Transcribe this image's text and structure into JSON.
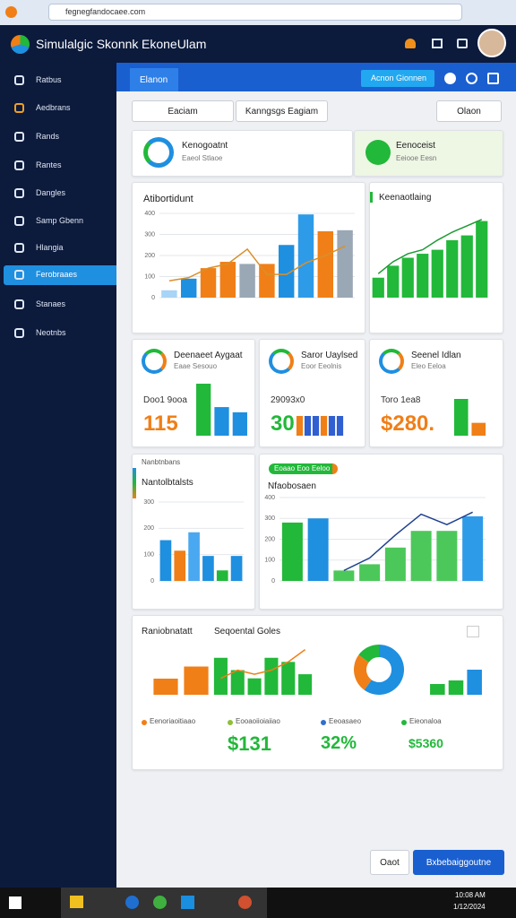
{
  "browser": {
    "url": "fegnegfandocaee.com"
  },
  "header": {
    "title": "Simulalgic Skonnk",
    "subtitle": "EkoneUlam"
  },
  "sidebar": {
    "items": [
      "Ratbus",
      "Aedbrans",
      "Rands",
      "Rantes",
      "Dangles",
      "Samp Gbenn",
      "Hlangia",
      "Ferobraaes",
      "Stanaes",
      "Neotnbs"
    ],
    "active": 7
  },
  "tab": "Elanon",
  "action": "Acnon Gionnen",
  "toolbar": [
    "Eaciam",
    "Kanngsgs Eagiam",
    "Olaon"
  ],
  "summary": [
    {
      "title": "Kenogoatnt",
      "subtitle": "Eaeol Stlaoe"
    },
    {
      "title": "Eenoceist",
      "subtitle": "Eeiooe Eesn"
    }
  ],
  "charts": [
    {
      "type": "bar",
      "title": "Atibortidunt",
      "ylim": [
        0,
        400
      ],
      "yticks": [
        0,
        100,
        200,
        300,
        400
      ],
      "values": [
        35,
        90,
        140,
        170,
        160,
        160,
        250,
        395,
        315,
        320
      ],
      "colors": [
        "#a8d4f5",
        "#1f8fe0",
        "#f07f17",
        "#f07f17",
        "#9aa7b5",
        "#f07f17",
        "#1f8fe0",
        "#2e9be8",
        "#f07f17",
        "#9aa7b5"
      ],
      "line": [
        80,
        95,
        140,
        160,
        230,
        110,
        110,
        165,
        200,
        245
      ],
      "line_color": "#d9902a"
    },
    {
      "type": "bar",
      "title": "Keenaotlaing",
      "ylim": [
        0,
        100
      ],
      "values": [
        25,
        40,
        50,
        55,
        60,
        72,
        78,
        96
      ],
      "colors": [
        "#22b83a",
        "#22b83a",
        "#22b83a",
        "#22b83a",
        "#22b83a",
        "#22b83a",
        "#22b83a",
        "#22b83a"
      ],
      "line": [
        30,
        45,
        55,
        60,
        72,
        82,
        90,
        98
      ],
      "line_color": "#1c9a33"
    },
    {
      "type": "bar",
      "ylim": [
        0,
        100
      ],
      "values": [
        100,
        55,
        45
      ],
      "colors": [
        "#22b83a",
        "#1f8fe0",
        "#1f8fe0"
      ]
    },
    {
      "type": "bar",
      "ylim": [
        0,
        100
      ],
      "values": [
        100,
        100,
        100,
        100,
        100,
        100
      ],
      "colors": [
        "#f07f17",
        "#2f5fd0",
        "#2f5fd0",
        "#f07f17",
        "#2f5fd0",
        "#2f5fd0"
      ]
    },
    {
      "type": "bar",
      "ylim": [
        0,
        100
      ],
      "values": [
        100,
        35
      ],
      "colors": [
        "#22b83a",
        "#f07f17"
      ]
    },
    {
      "type": "bar",
      "title": "Nantolbtalsts",
      "ylim": [
        0,
        300
      ],
      "yticks": [
        0,
        100,
        200,
        300
      ],
      "values": [
        155,
        115,
        185,
        95,
        40,
        95
      ],
      "colors": [
        "#1f8fe0",
        "#f07f17",
        "#4aa8f0",
        "#1f8fe0",
        "#22b83a",
        "#1f8fe0"
      ]
    },
    {
      "type": "bar",
      "title": "Nfaobosaen",
      "ylim": [
        0,
        400
      ],
      "yticks": [
        0,
        100,
        200,
        300,
        400
      ],
      "values": [
        280,
        300,
        50,
        80,
        160,
        240,
        240,
        310
      ],
      "colors": [
        "#22b83a",
        "#1f8fe0",
        "#4cc85a",
        "#4cc85a",
        "#4cc85a",
        "#4cc85a",
        "#4cc85a",
        "#2e9be8"
      ],
      "line": [
        null,
        null,
        50,
        110,
        220,
        320,
        270,
        330
      ],
      "line_color": "#1d3f8f"
    },
    {
      "type": "bar",
      "ylim": [
        0,
        50
      ],
      "values": [
        20,
        35
      ],
      "colors": [
        "#f07f17",
        "#f07f17"
      ]
    },
    {
      "type": "bar",
      "ylim": [
        0,
        60
      ],
      "values": [
        45,
        30,
        20,
        45,
        40,
        25
      ],
      "colors": [
        "#22b83a",
        "#22b83a",
        "#22b83a",
        "#22b83a",
        "#22b83a",
        "#22b83a"
      ],
      "line": [
        20,
        30,
        25,
        30,
        40,
        55
      ],
      "line_color": "#f07f17"
    },
    {
      "type": "bar",
      "ylim": [
        0,
        50
      ],
      "values": [
        15,
        20,
        35
      ],
      "colors": [
        "#22b83a",
        "#22b83a",
        "#1f8fe0"
      ]
    },
    {
      "type": "pie",
      "values": [
        60,
        25,
        15
      ],
      "colors": [
        "#1f8fe0",
        "#f07f17",
        "#22b83a"
      ]
    }
  ],
  "kpis": [
    {
      "title": "Deenaeet Aygaat",
      "subtitle": "Eaae Sesouo",
      "caption": "Doo1 9ooa",
      "value": "115",
      "color": "#f07f17"
    },
    {
      "title": "Saror Uaylsed",
      "subtitle": "Eoor Eeolnis",
      "caption": "29093x0",
      "value": "30",
      "color": "#22b83a"
    },
    {
      "title": "Seenel Idlan",
      "subtitle": "Eleo Eeloa",
      "caption": "Toro 1ea8",
      "value": "$280.",
      "color": "#f07f17"
    }
  ],
  "tags": {
    "card_strip": "Nanbtnbans",
    "pill": "Eoaao Eoo Eeloo"
  },
  "bottom": {
    "titles": [
      "Raniobnatatt",
      "Seqoental Goles"
    ],
    "legend": [
      {
        "label": "Eenoriaoitiaao",
        "color": "#f07f17"
      },
      {
        "label": "Eooaoiioiaiiao",
        "color": "#8fbf3a"
      },
      {
        "label": "Eeoasaeo",
        "color": "#2f6fd0"
      },
      {
        "label": "Eieonaloa",
        "color": "#22b83a"
      }
    ],
    "values": [
      "$131",
      "32%",
      "$5360"
    ]
  },
  "buttons": [
    "Oaot",
    "Bxbebaiggoutne"
  ],
  "taskbar": {
    "time": "10:08 AM",
    "date": "1/12/2024"
  }
}
